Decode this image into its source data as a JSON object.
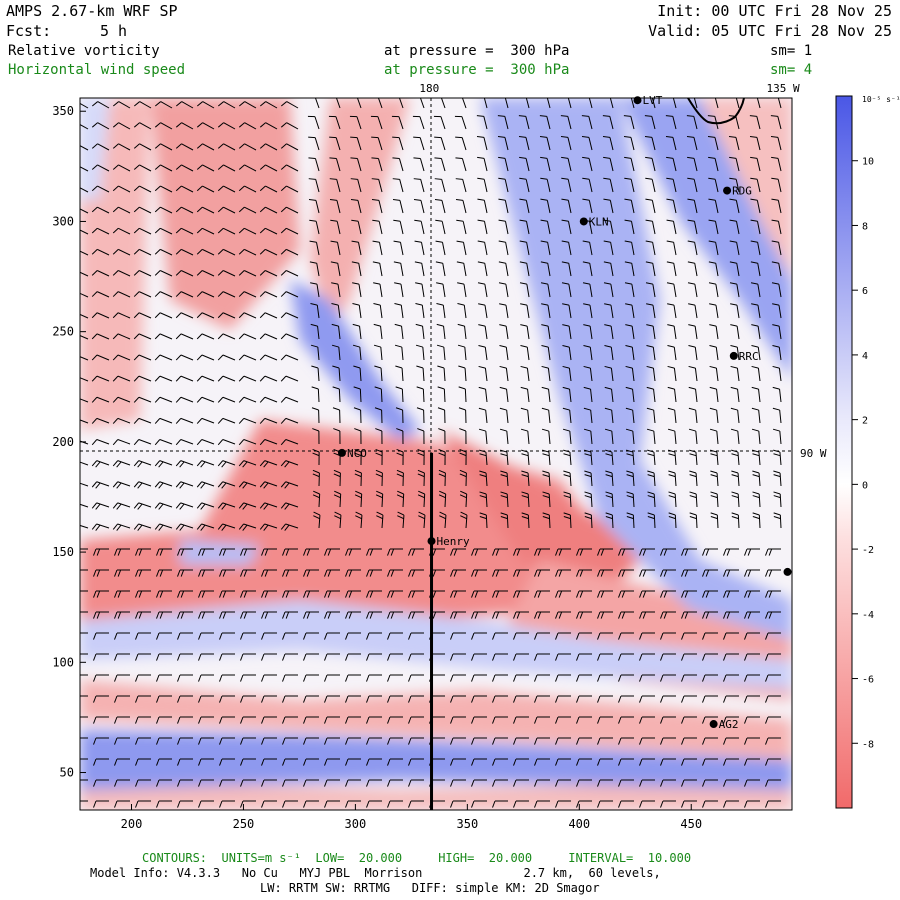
{
  "header": {
    "title": "AMPS 2.67-km WRF SP",
    "fcst_label": "Fcst:",
    "fcst_value": "5 h",
    "init": "Init: 00 UTC Fri 28 Nov 25",
    "valid": "Valid: 05 UTC Fri 28 Nov 25",
    "field1_name": "Relative vorticity",
    "field1_level": "at pressure =  300 hPa",
    "field1_sm": "sm= 1",
    "field2_name": "Horizontal wind speed",
    "field2_level": "at pressure =  300 hPa",
    "field2_sm": "sm= 4"
  },
  "footer": {
    "contours": "CONTOURS:  UNITS=m s⁻¹  LOW=  20.000     HIGH=  20.000     INTERVAL=  10.000",
    "model_info": "Model Info: V4.3.3   No Cu   MYJ PBL  Morrison              2.7 km,  60 levels,",
    "physics": "LW: RRTM SW: RRTMG   DIFF: simple KM: 2D Smagor"
  },
  "chart_data": {
    "type": "heatmap",
    "title": "Relative vorticity at 300 hPa with horizontal wind barbs",
    "x_ticks": [
      200,
      250,
      300,
      350,
      400,
      450
    ],
    "y_ticks": [
      50,
      100,
      150,
      200,
      250,
      300,
      350
    ],
    "xlim": [
      177,
      495
    ],
    "ylim": [
      33,
      356
    ],
    "colorbar": {
      "units": "10⁻⁵ s⁻¹",
      "ticks": [
        10,
        8,
        6,
        4,
        2,
        0,
        -2,
        -4,
        -6,
        -8
      ],
      "range": [
        -10,
        12
      ]
    },
    "meridian_labels": [
      {
        "text": "180",
        "x": 333
      },
      {
        "text": "135 W",
        "x": 491
      }
    ],
    "parallel_labels": [
      {
        "text": "90 W",
        "y": 195
      }
    ],
    "stations": [
      {
        "name": "LVT",
        "x": 426,
        "y": 355
      },
      {
        "name": "RDG",
        "x": 466,
        "y": 314
      },
      {
        "name": "KLN",
        "x": 402,
        "y": 300
      },
      {
        "name": "RRC",
        "x": 469,
        "y": 239
      },
      {
        "name": "NCO",
        "x": 294,
        "y": 195
      },
      {
        "name": "Henry",
        "x": 334,
        "y": 155
      },
      {
        "name": "",
        "x": 493,
        "y": 141
      },
      {
        "name": "AG2",
        "x": 460,
        "y": 72
      }
    ],
    "transect": {
      "x": 334,
      "y_start": 33,
      "y_end": 195
    }
  }
}
